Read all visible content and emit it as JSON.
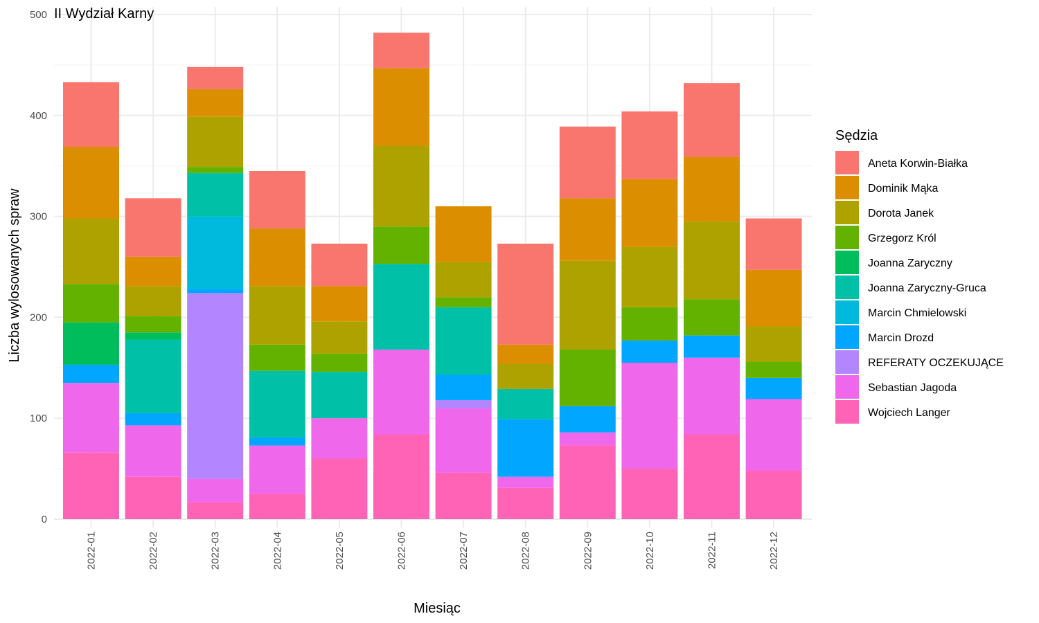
{
  "chart_data": {
    "type": "bar",
    "stacked": true,
    "title": "II Wydział Karny",
    "xlabel": "Miesiąc",
    "ylabel": "Liczba wylosowanych spraw",
    "ylim": [
      0,
      500
    ],
    "yticks": [
      0,
      100,
      200,
      300,
      400,
      500
    ],
    "grid": true,
    "legend_position": "right",
    "legend_title": "Sędzia",
    "categories": [
      "2022-01",
      "2022-02",
      "2022-03",
      "2022-04",
      "2022-05",
      "2022-06",
      "2022-07",
      "2022-08",
      "2022-09",
      "2022-10",
      "2022-11",
      "2022-12"
    ],
    "series": [
      {
        "name": "Aneta Korwin-Białka",
        "color": "#F8766D",
        "values": [
          64,
          58,
          22,
          57,
          42,
          35,
          0,
          100,
          71,
          67,
          73,
          51
        ]
      },
      {
        "name": "Dominik Mąka",
        "color": "#DB8E00",
        "values": [
          71,
          29,
          27,
          57,
          35,
          77,
          55,
          19,
          62,
          67,
          64,
          56
        ]
      },
      {
        "name": "Dorota Janek",
        "color": "#AEA200",
        "values": [
          65,
          30,
          50,
          58,
          32,
          80,
          35,
          25,
          88,
          60,
          77,
          35
        ]
      },
      {
        "name": "Grzegorz Król",
        "color": "#64B200",
        "values": [
          38,
          16,
          6,
          26,
          18,
          37,
          10,
          0,
          56,
          33,
          36,
          16
        ]
      },
      {
        "name": "Joanna Zaryczny",
        "color": "#00BD5C",
        "values": [
          42,
          7,
          0,
          0,
          0,
          0,
          0,
          0,
          0,
          0,
          0,
          0
        ]
      },
      {
        "name": "Joanna Zaryczny-Gruca",
        "color": "#00C1A7",
        "values": [
          0,
          73,
          43,
          66,
          46,
          85,
          67,
          30,
          0,
          0,
          0,
          0
        ]
      },
      {
        "name": "Marcin Chmielowski",
        "color": "#00BADE",
        "values": [
          0,
          0,
          72,
          0,
          0,
          0,
          0,
          0,
          0,
          0,
          0,
          0
        ]
      },
      {
        "name": "Marcin Drozd",
        "color": "#00A6FF",
        "values": [
          18,
          12,
          4,
          8,
          0,
          0,
          25,
          57,
          26,
          22,
          22,
          21
        ]
      },
      {
        "name": "REFERATY OCZEKUJĄCE",
        "color": "#B385FF",
        "values": [
          0,
          0,
          184,
          0,
          0,
          0,
          8,
          0,
          0,
          0,
          0,
          0
        ]
      },
      {
        "name": "Sebastian Jagoda",
        "color": "#EF67EB",
        "values": [
          69,
          51,
          23,
          48,
          40,
          84,
          64,
          11,
          13,
          105,
          76,
          71
        ]
      },
      {
        "name": "Wojciech Langer",
        "color": "#FF63B6",
        "values": [
          66,
          42,
          17,
          25,
          60,
          84,
          46,
          31,
          73,
          50,
          84,
          48
        ]
      }
    ]
  }
}
